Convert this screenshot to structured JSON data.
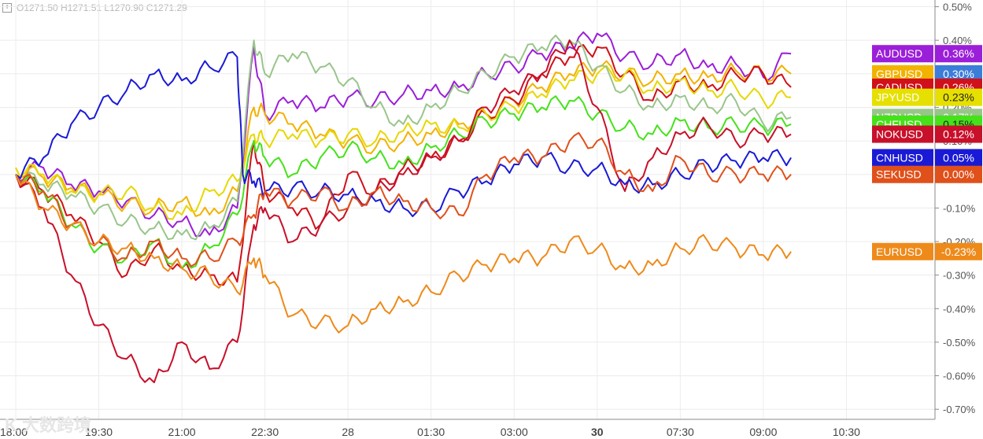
{
  "header": {
    "ohlc": "O1271.50  H1271.51  L1270.90  C1271.29"
  },
  "watermark": "K 大数跨境",
  "chart_data": {
    "type": "line",
    "ylabel_unit": "%",
    "ylim": [
      -0.73,
      0.52
    ],
    "y_ticks": [
      "0.50%",
      "0.40%",
      "0.30%",
      "0.20%",
      "0.10%",
      "0.00%",
      "-0.10%",
      "-0.20%",
      "-0.30%",
      "-0.40%",
      "-0.50%",
      "-0.60%",
      "-0.70%"
    ],
    "y_tick_values": [
      0.5,
      0.4,
      0.3,
      0.2,
      0.1,
      0.0,
      -0.1,
      -0.2,
      -0.3,
      -0.4,
      -0.5,
      -0.6,
      -0.7
    ],
    "x_ticks": [
      "18:00",
      "19:30",
      "21:00",
      "22:30",
      "28",
      "01:30",
      "03:00",
      "30",
      "07:30",
      "09:00",
      "10:30"
    ],
    "x_tick_hours": [
      0,
      1.5,
      3,
      4.5,
      6,
      7.5,
      9,
      10.5,
      12,
      13.5,
      15
    ],
    "x_bold_ticks": [
      "30"
    ],
    "xlim_hours": [
      0,
      16.6
    ],
    "grid": true,
    "series": [
      {
        "name": "AUDUSD",
        "label": "0.36%",
        "color": "#9b1fd8",
        "x": [
          0,
          0.5,
          1,
          1.5,
          2,
          2.5,
          3,
          3.5,
          4,
          4.3,
          4.5,
          5,
          5.5,
          6,
          6.5,
          7,
          7.5,
          8,
          8.5,
          9,
          9.5,
          10,
          10.5,
          11,
          11.5,
          12,
          12.5,
          13,
          13.5,
          14
        ],
        "y": [
          0.0,
          0.02,
          -0.03,
          -0.05,
          -0.08,
          -0.12,
          -0.14,
          -0.18,
          -0.1,
          0.38,
          0.18,
          0.22,
          0.2,
          0.23,
          0.22,
          0.24,
          0.25,
          0.26,
          0.3,
          0.32,
          0.36,
          0.38,
          0.42,
          0.35,
          0.33,
          0.36,
          0.32,
          0.33,
          0.29,
          0.36
        ]
      },
      {
        "name": "GBPUSD",
        "label": "0.30%",
        "color": "#f2b200",
        "x": [
          0,
          0.5,
          1,
          1.5,
          2,
          2.5,
          3,
          3.5,
          4,
          4.3,
          4.5,
          5,
          5.5,
          6,
          6.5,
          7,
          7.5,
          8,
          8.5,
          9,
          9.5,
          10,
          10.5,
          11,
          11.5,
          12,
          12.5,
          13,
          13.5,
          14
        ],
        "y": [
          0.02,
          -0.01,
          -0.04,
          -0.06,
          -0.09,
          -0.1,
          -0.08,
          -0.12,
          -0.05,
          0.2,
          0.18,
          0.15,
          0.12,
          0.1,
          0.08,
          0.1,
          0.12,
          0.15,
          0.18,
          0.22,
          0.26,
          0.3,
          0.32,
          0.3,
          0.28,
          0.3,
          0.29,
          0.31,
          0.3,
          0.3
        ]
      },
      {
        "name": "CADUSD",
        "label": "0.26%",
        "color": "#d0101a",
        "x": [
          0,
          0.5,
          1,
          1.5,
          2,
          2.5,
          3,
          3.5,
          4,
          4.3,
          4.5,
          5,
          5.5,
          6,
          6.5,
          7,
          7.5,
          8,
          8.5,
          9,
          9.5,
          10,
          10.5,
          11,
          11.5,
          12,
          12.5,
          13,
          13.5,
          14
        ],
        "y": [
          0.0,
          -0.05,
          -0.12,
          -0.2,
          -0.3,
          -0.22,
          -0.28,
          -0.3,
          -0.32,
          0.1,
          -0.05,
          -0.1,
          -0.15,
          0.0,
          -0.05,
          0.02,
          0.05,
          0.1,
          0.18,
          0.22,
          0.3,
          0.35,
          0.38,
          0.3,
          0.22,
          0.28,
          0.26,
          0.3,
          0.3,
          0.26
        ]
      },
      {
        "name": "JPYUSD",
        "label": "0.23%",
        "color": "#e6d800",
        "x": [
          0,
          0.5,
          1,
          1.5,
          2,
          2.5,
          3,
          3.5,
          4,
          4.3,
          4.5,
          5,
          5.5,
          6,
          6.5,
          7,
          7.5,
          8,
          8.5,
          9,
          9.5,
          10,
          10.5,
          11,
          11.5,
          12,
          12.5,
          13,
          13.5,
          14
        ],
        "y": [
          0.02,
          0.0,
          -0.05,
          -0.06,
          -0.05,
          -0.1,
          -0.12,
          -0.05,
          -0.02,
          0.12,
          0.1,
          0.12,
          0.1,
          0.12,
          0.1,
          0.13,
          0.15,
          0.14,
          0.18,
          0.2,
          0.24,
          0.28,
          0.3,
          0.3,
          0.25,
          0.28,
          0.25,
          0.26,
          0.22,
          0.23
        ]
      },
      {
        "name": "NZDUSD",
        "label": "0.17%",
        "color": "#99c58a",
        "x": [
          0,
          0.5,
          1,
          1.5,
          2,
          2.5,
          3,
          3.5,
          4,
          4.3,
          4.5,
          5,
          5.5,
          6,
          6.5,
          7,
          7.5,
          8,
          8.5,
          9,
          9.5,
          10,
          10.5,
          11,
          11.5,
          12,
          12.5,
          13,
          13.5,
          14
        ],
        "y": [
          0.0,
          -0.03,
          -0.06,
          -0.1,
          -0.14,
          -0.16,
          -0.18,
          -0.16,
          -0.08,
          0.4,
          0.3,
          0.36,
          0.32,
          0.28,
          0.2,
          0.15,
          0.2,
          0.25,
          0.3,
          0.35,
          0.38,
          0.4,
          0.32,
          0.25,
          0.2,
          0.23,
          0.2,
          0.22,
          0.15,
          0.17
        ]
      },
      {
        "name": "CHFUSD",
        "label": "0.15%",
        "color": "#45e21a",
        "x": [
          0,
          0.5,
          1,
          1.5,
          2,
          2.5,
          3,
          3.5,
          4,
          4.3,
          4.5,
          5,
          5.5,
          6,
          6.5,
          7,
          7.5,
          8,
          8.5,
          9,
          9.5,
          10,
          10.5,
          11,
          11.5,
          12,
          12.5,
          13,
          13.5,
          14
        ],
        "y": [
          0.0,
          -0.05,
          -0.15,
          -0.22,
          -0.25,
          -0.2,
          -0.28,
          -0.22,
          -0.12,
          0.1,
          0.05,
          0.0,
          0.05,
          0.08,
          0.05,
          0.03,
          0.08,
          0.12,
          0.16,
          0.18,
          0.2,
          0.22,
          0.18,
          0.14,
          0.12,
          0.16,
          0.14,
          0.15,
          0.14,
          0.15
        ]
      },
      {
        "name": "NOKUSD",
        "label": "0.12%",
        "color": "#c8102a",
        "x": [
          0,
          0.5,
          1,
          1.5,
          2,
          2.5,
          3,
          3.5,
          4,
          4.3,
          4.5,
          5,
          5.5,
          6,
          6.5,
          7,
          7.5,
          8,
          8.5,
          9,
          9.5,
          10,
          10.5,
          11,
          11.5,
          12,
          12.5,
          13,
          13.5,
          14
        ],
        "y": [
          0.0,
          -0.1,
          -0.3,
          -0.45,
          -0.55,
          -0.62,
          -0.5,
          -0.58,
          -0.5,
          -0.15,
          -0.1,
          -0.2,
          -0.15,
          -0.1,
          -0.05,
          0.0,
          0.05,
          0.1,
          0.2,
          0.25,
          0.3,
          0.4,
          0.2,
          -0.05,
          0.05,
          0.12,
          0.15,
          0.1,
          0.12,
          0.12
        ]
      },
      {
        "name": "CNHUSD",
        "label": "0.05%",
        "color": "#1a1ad6",
        "x": [
          0,
          0.5,
          1,
          1.5,
          2,
          2.5,
          3,
          3.5,
          4,
          4.1,
          4.3,
          4.5,
          5,
          5.5,
          6,
          6.5,
          7,
          7.5,
          8,
          8.5,
          9,
          9.5,
          10,
          10.5,
          11,
          11.5,
          12,
          12.5,
          13,
          13.5,
          14
        ],
        "y": [
          0.0,
          0.05,
          0.15,
          0.2,
          0.25,
          0.3,
          0.28,
          0.32,
          0.35,
          0.0,
          -0.02,
          -0.05,
          -0.04,
          -0.05,
          -0.06,
          -0.08,
          -0.1,
          -0.1,
          -0.05,
          -0.02,
          0.03,
          0.05,
          0.02,
          0.02,
          -0.03,
          -0.03,
          0.0,
          0.03,
          0.04,
          0.05,
          0.05
        ]
      },
      {
        "name": "SEKUSD",
        "label": "0.00%",
        "color": "#e0501a",
        "x": [
          0,
          0.5,
          1,
          1.5,
          2,
          2.5,
          3,
          3.5,
          4,
          4.3,
          4.5,
          5,
          5.5,
          6,
          6.5,
          7,
          7.5,
          8,
          8.5,
          9,
          9.5,
          10,
          10.5,
          11,
          11.5,
          12,
          12.5,
          13,
          13.5,
          14
        ],
        "y": [
          0.0,
          -0.05,
          -0.15,
          -0.2,
          -0.25,
          -0.2,
          -0.25,
          -0.25,
          -0.2,
          -0.12,
          -0.05,
          -0.08,
          -0.05,
          -0.1,
          -0.05,
          -0.08,
          -0.1,
          -0.12,
          0.0,
          0.05,
          0.05,
          0.1,
          0.1,
          0.0,
          -0.05,
          0.05,
          0.0,
          0.0,
          0.0,
          0.0
        ]
      },
      {
        "name": "EURUSD",
        "label": "-0.23%",
        "color": "#ee8a1a",
        "x": [
          0,
          0.5,
          1,
          1.5,
          2,
          2.5,
          3,
          3.5,
          4,
          4.3,
          4.5,
          5,
          5.5,
          6,
          6.5,
          7,
          7.5,
          8,
          8.5,
          9,
          9.5,
          10,
          10.5,
          11,
          11.5,
          12,
          12.5,
          13,
          13.5,
          14
        ],
        "y": [
          0.0,
          -0.1,
          -0.15,
          -0.2,
          -0.22,
          -0.25,
          -0.28,
          -0.3,
          -0.35,
          -0.25,
          -0.3,
          -0.42,
          -0.44,
          -0.45,
          -0.4,
          -0.38,
          -0.35,
          -0.3,
          -0.27,
          -0.25,
          -0.25,
          -0.2,
          -0.22,
          -0.28,
          -0.27,
          -0.22,
          -0.2,
          -0.22,
          -0.24,
          -0.23
        ]
      }
    ],
    "legend": [
      {
        "name": "AUDUSD",
        "label": "0.36%",
        "color": "#9b1fd8",
        "text_color": "#ffffff"
      },
      {
        "name": "GBPUSD",
        "label": "0.30%",
        "color": "#f2b200",
        "text_color": "#ffffff",
        "label_bg": "#3b7dd8"
      },
      {
        "name": "CADUSD",
        "label": "0.26%",
        "color": "#d0101a",
        "text_color": "#ffffff"
      },
      {
        "name": "JPYUSD",
        "label": "0.23%",
        "color": "#e6e000",
        "text_color": "#222222"
      },
      {
        "name": "NZDUSD",
        "label": "0.17%",
        "color": "#99c58a",
        "text_color": "#ffffff"
      },
      {
        "name": "CHFUSD",
        "label": "0.15%",
        "color": "#45e21a",
        "text_color": "#222222"
      },
      {
        "name": "NOKUSD",
        "label": "0.12%",
        "color": "#c8102a",
        "text_color": "#ffffff"
      },
      {
        "name": "CNHUSD",
        "label": "0.05%",
        "color": "#1a1ad6",
        "text_color": "#ffffff"
      },
      {
        "name": "SEKUSD",
        "label": "0.00%",
        "color": "#e0501a",
        "text_color": "#ffffff"
      },
      {
        "name": "EURUSD",
        "label": "-0.23%",
        "color": "#ee8a1a",
        "text_color": "#ffffff"
      }
    ]
  }
}
